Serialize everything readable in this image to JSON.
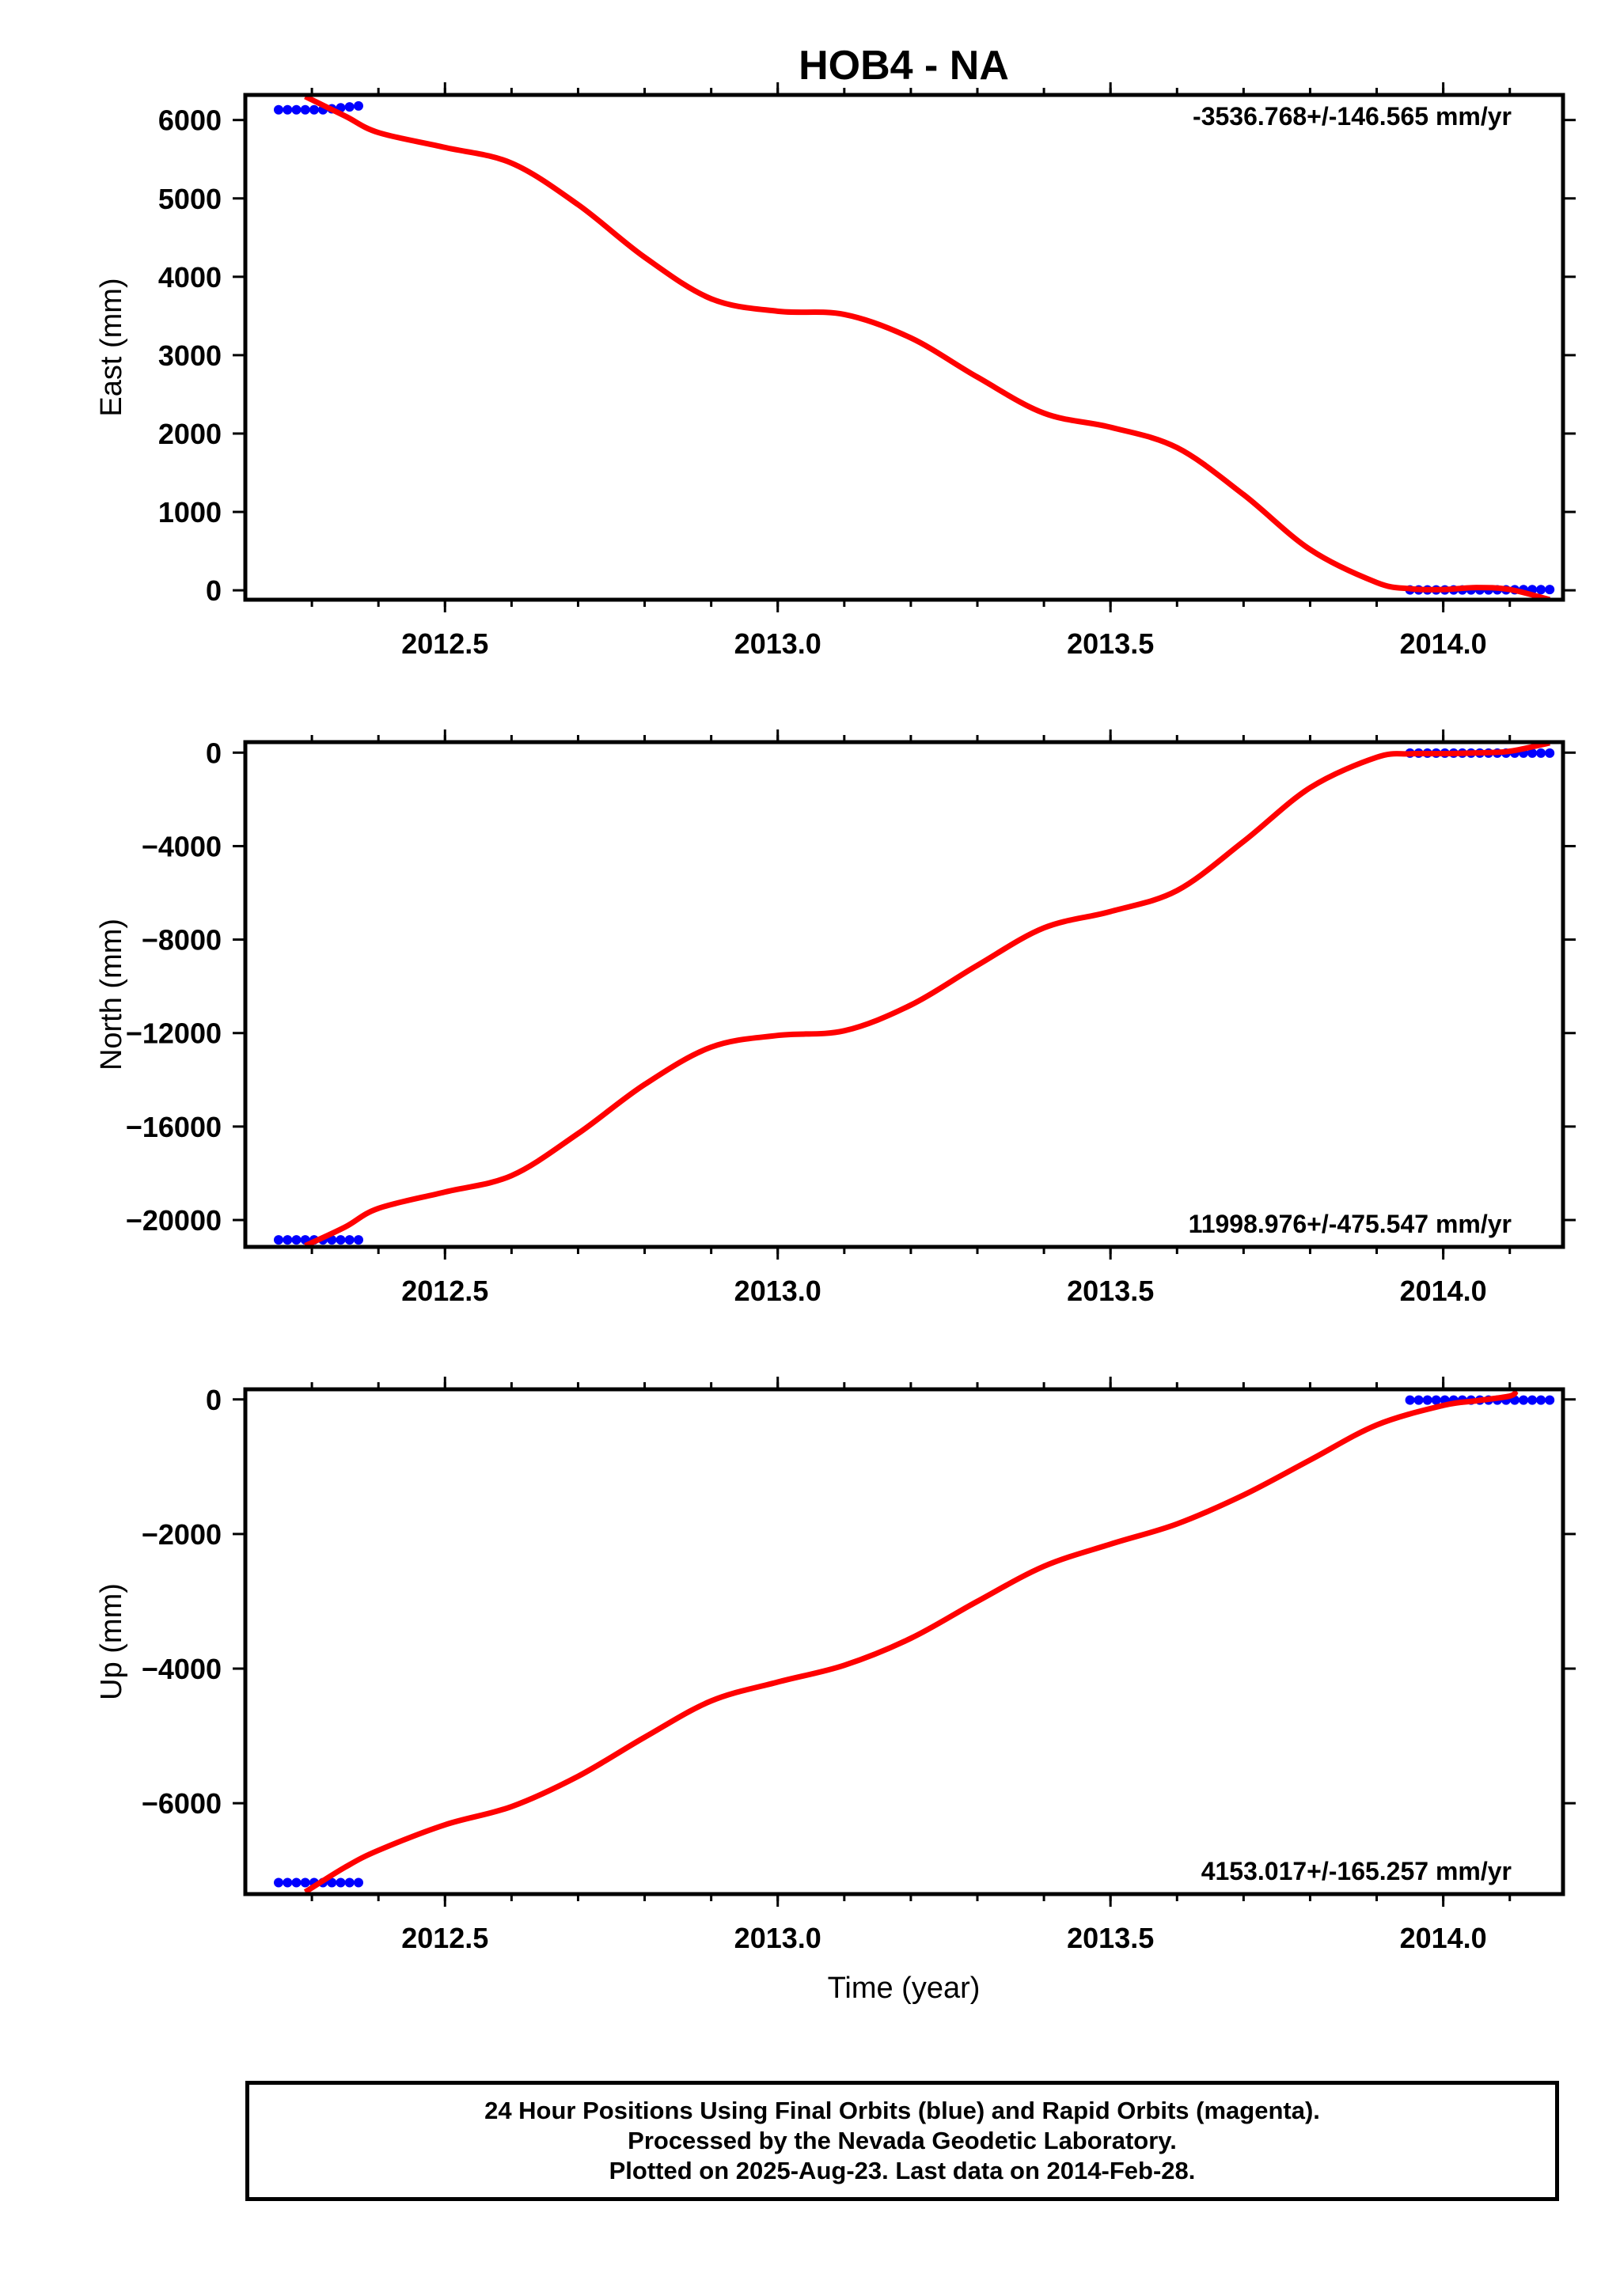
{
  "title": "HOB4 - NA",
  "chart_data": {
    "type": "scatter",
    "xlabel": "Time (year)",
    "xlim": [
      2012.2,
      2014.18
    ],
    "xticks": [
      2012.5,
      2013.0,
      2013.5,
      2014.0
    ],
    "xtick_labels": [
      "2012.5",
      "2013.0",
      "2013.5",
      "2014.0"
    ],
    "grid": false,
    "colors": {
      "final_orbits": "#0000ff",
      "rapid_orbits": "#ff00ff",
      "fit": "#ff0000"
    },
    "panels": [
      {
        "name": "east",
        "ylabel": "East (mm)",
        "ylim": [
          -120,
          6320
        ],
        "yticks": [
          0,
          1000,
          2000,
          3000,
          4000,
          5000,
          6000
        ],
        "ytick_labels": [
          "0",
          "1000",
          "2000",
          "3000",
          "4000",
          "5000",
          "6000"
        ],
        "rate_text": "-3536.768+/-146.565 mm/yr",
        "rate_position": "top-right",
        "points": [
          {
            "t_range": [
              2012.25,
              2012.37
            ],
            "y": 6130,
            "y_end": 6180
          },
          {
            "t_range": [
              2013.95,
              2014.16
            ],
            "y": 5,
            "y_end": 10
          }
        ],
        "fit": [
          [
            2012.29,
            6300
          ],
          [
            2012.35,
            6050
          ],
          [
            2012.4,
            5840
          ],
          [
            2012.5,
            5650
          ],
          [
            2012.6,
            5450
          ],
          [
            2012.7,
            4920
          ],
          [
            2012.8,
            4250
          ],
          [
            2012.9,
            3720
          ],
          [
            2013.0,
            3560
          ],
          [
            2013.1,
            3520
          ],
          [
            2013.2,
            3220
          ],
          [
            2013.3,
            2720
          ],
          [
            2013.4,
            2260
          ],
          [
            2013.5,
            2080
          ],
          [
            2013.6,
            1820
          ],
          [
            2013.7,
            1220
          ],
          [
            2013.8,
            520
          ],
          [
            2013.9,
            100
          ],
          [
            2013.95,
            20
          ],
          [
            2014.0,
            10
          ],
          [
            2014.05,
            35
          ],
          [
            2014.1,
            10
          ],
          [
            2014.16,
            -120
          ]
        ]
      },
      {
        "name": "north",
        "ylabel": "North (mm)",
        "ylim": [
          -21150,
          450
        ],
        "yticks": [
          -20000,
          -16000,
          -12000,
          -8000,
          -4000,
          0
        ],
        "ytick_labels": [
          "−20000",
          "−16000",
          "−12000",
          "−8000",
          "−4000",
          "0"
        ],
        "rate_text": "11998.976+/-475.547 mm/yr",
        "rate_position": "bottom-right",
        "points": [
          {
            "t_range": [
              2012.25,
              2012.37
            ],
            "y": -20850,
            "y_end": -20850
          },
          {
            "t_range": [
              2013.95,
              2014.16
            ],
            "y": -20,
            "y_end": -20
          }
        ],
        "fit": [
          [
            2012.29,
            -21100
          ],
          [
            2012.35,
            -20300
          ],
          [
            2012.4,
            -19500
          ],
          [
            2012.5,
            -18800
          ],
          [
            2012.6,
            -18100
          ],
          [
            2012.7,
            -16300
          ],
          [
            2012.8,
            -14200
          ],
          [
            2012.9,
            -12600
          ],
          [
            2013.0,
            -12100
          ],
          [
            2013.1,
            -11900
          ],
          [
            2013.2,
            -10800
          ],
          [
            2013.3,
            -9100
          ],
          [
            2013.4,
            -7500
          ],
          [
            2013.5,
            -6800
          ],
          [
            2013.6,
            -5900
          ],
          [
            2013.7,
            -3800
          ],
          [
            2013.8,
            -1500
          ],
          [
            2013.9,
            -200
          ],
          [
            2013.95,
            -50
          ],
          [
            2014.0,
            -40
          ],
          [
            2014.05,
            -10
          ],
          [
            2014.1,
            60
          ],
          [
            2014.16,
            420
          ]
        ]
      },
      {
        "name": "up",
        "ylabel": "Up (mm)",
        "ylim": [
          -7350,
          150
        ],
        "yticks": [
          -6000,
          -4000,
          -2000,
          0
        ],
        "ytick_labels": [
          "−6000",
          "−4000",
          "−2000",
          "0"
        ],
        "rate_text": "4153.017+/-165.257 mm/yr",
        "rate_position": "bottom-right",
        "points": [
          {
            "t_range": [
              2012.25,
              2012.37
            ],
            "y": -7180,
            "y_end": -7180
          },
          {
            "t_range": [
              2013.95,
              2014.16
            ],
            "y": -10,
            "y_end": -10
          }
        ],
        "fit": [
          [
            2012.29,
            -7320
          ],
          [
            2012.35,
            -6950
          ],
          [
            2012.4,
            -6700
          ],
          [
            2012.5,
            -6320
          ],
          [
            2012.6,
            -6050
          ],
          [
            2012.7,
            -5600
          ],
          [
            2012.8,
            -5020
          ],
          [
            2012.9,
            -4480
          ],
          [
            2013.0,
            -4200
          ],
          [
            2013.1,
            -3950
          ],
          [
            2013.2,
            -3550
          ],
          [
            2013.3,
            -3000
          ],
          [
            2013.4,
            -2480
          ],
          [
            2013.5,
            -2150
          ],
          [
            2013.6,
            -1850
          ],
          [
            2013.7,
            -1420
          ],
          [
            2013.8,
            -900
          ],
          [
            2013.9,
            -380
          ],
          [
            2014.0,
            -90
          ],
          [
            2014.05,
            -20
          ],
          [
            2014.1,
            50
          ],
          [
            2014.11,
            130
          ]
        ]
      }
    ]
  },
  "footer": {
    "line1": "24 Hour Positions Using Final Orbits (blue) and Rapid Orbits (magenta).",
    "line2": "Processed by the Nevada Geodetic Laboratory.",
    "line3": "Plotted on 2025-Aug-23. Last data on 2014-Feb-28."
  }
}
